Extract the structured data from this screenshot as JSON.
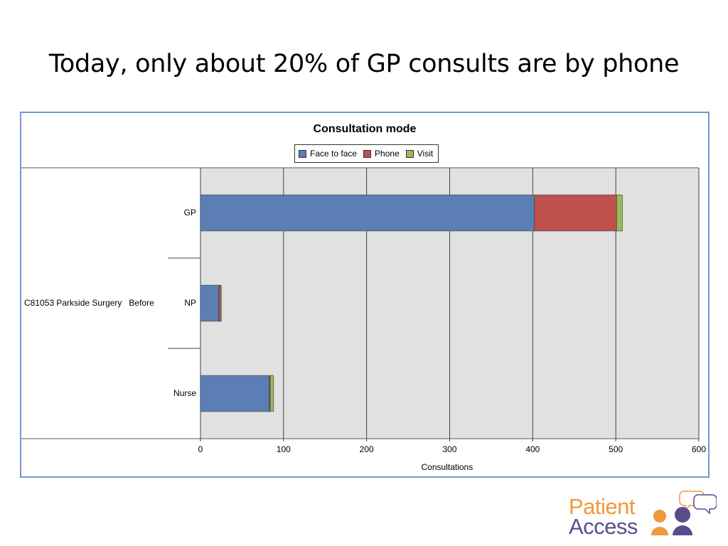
{
  "slide": {
    "title": "Today, only about 20% of GP consults are by phone"
  },
  "chart_data": {
    "type": "bar",
    "orientation": "horizontal",
    "stacked": true,
    "title": "Consultation mode",
    "xlabel": "Consultations",
    "ylabel": "",
    "group_label": "C81053 Parkside Surgery   Before",
    "categories": [
      "GP",
      "NP",
      "Nurse"
    ],
    "series": [
      {
        "name": "Face to face",
        "color": "#5b7fb5",
        "values": [
          402,
          22,
          83
        ]
      },
      {
        "name": "Phone",
        "color": "#c0504d",
        "values": [
          99,
          2,
          1
        ]
      },
      {
        "name": "Visit",
        "color": "#9bbb59",
        "values": [
          7,
          1,
          4
        ]
      }
    ],
    "xlim": [
      0,
      600
    ],
    "xticks": [
      0,
      100,
      200,
      300,
      400,
      500,
      600
    ],
    "grid": true,
    "legend_position": "top"
  },
  "logo": {
    "line1": "Patient",
    "line2": "Access",
    "colors": {
      "orange": "#f0983a",
      "purple": "#5a4c8c"
    }
  }
}
